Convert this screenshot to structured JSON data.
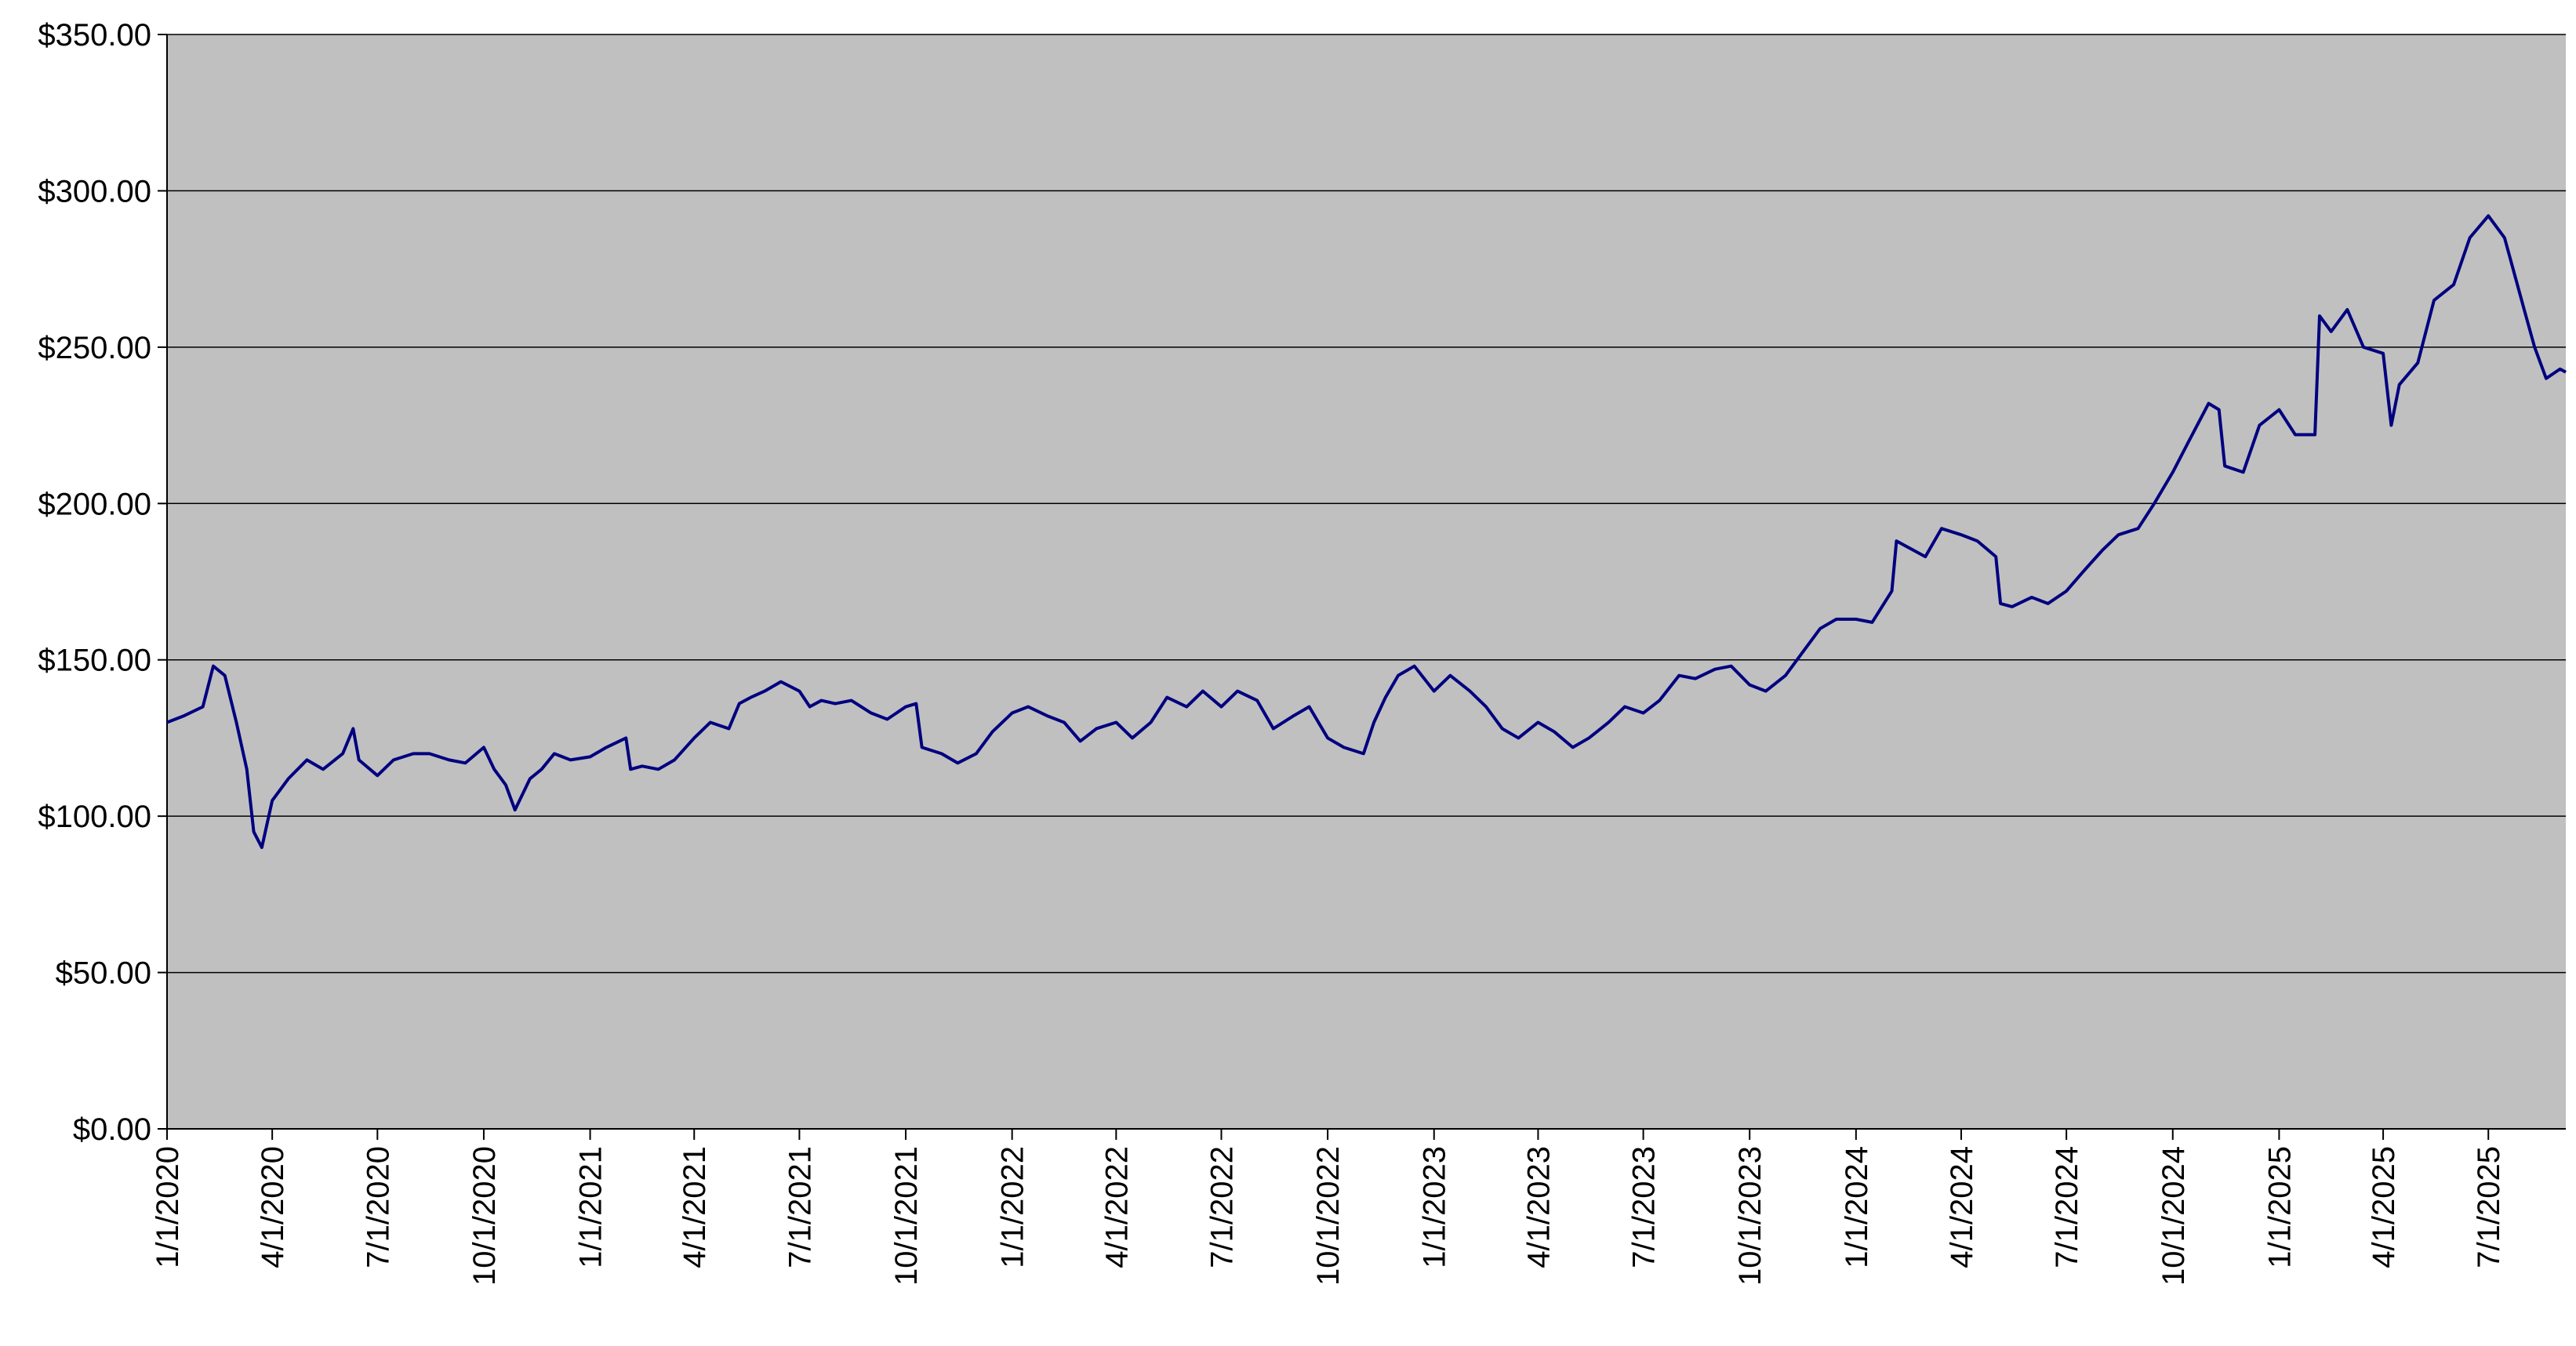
{
  "chart_data": {
    "type": "line",
    "x": [
      "1/1/2020",
      "1/15/2020",
      "2/1/2020",
      "2/10/2020",
      "2/20/2020",
      "3/1/2020",
      "3/10/2020",
      "3/16/2020",
      "3/23/2020",
      "4/1/2020",
      "4/15/2020",
      "5/1/2020",
      "5/15/2020",
      "6/1/2020",
      "6/10/2020",
      "6/15/2020",
      "7/1/2020",
      "7/15/2020",
      "8/1/2020",
      "8/15/2020",
      "9/1/2020",
      "9/15/2020",
      "10/1/2020",
      "10/10/2020",
      "10/20/2020",
      "10/28/2020",
      "11/10/2020",
      "11/20/2020",
      "12/1/2020",
      "12/15/2020",
      "1/1/2021",
      "1/15/2021",
      "2/1/2021",
      "2/5/2021",
      "2/15/2021",
      "3/1/2021",
      "3/15/2021",
      "4/1/2021",
      "4/15/2021",
      "5/1/2021",
      "5/10/2021",
      "5/20/2021",
      "6/1/2021",
      "6/15/2021",
      "7/1/2021",
      "7/10/2021",
      "7/20/2021",
      "8/1/2021",
      "8/15/2021",
      "9/1/2021",
      "9/15/2021",
      "10/1/2021",
      "10/10/2021",
      "10/15/2021",
      "11/1/2021",
      "11/15/2021",
      "12/1/2021",
      "12/15/2021",
      "1/1/2022",
      "1/15/2022",
      "2/1/2022",
      "2/15/2022",
      "3/1/2022",
      "3/15/2022",
      "4/1/2022",
      "4/15/2022",
      "5/1/2022",
      "5/15/2022",
      "6/1/2022",
      "6/15/2022",
      "7/1/2022",
      "7/15/2022",
      "8/1/2022",
      "8/15/2022",
      "9/1/2022",
      "9/15/2022",
      "10/1/2022",
      "10/15/2022",
      "11/1/2022",
      "11/10/2022",
      "11/20/2022",
      "12/1/2022",
      "12/15/2022",
      "1/1/2023",
      "1/15/2023",
      "2/1/2023",
      "2/15/2023",
      "3/1/2023",
      "3/15/2023",
      "4/1/2023",
      "4/15/2023",
      "5/1/2023",
      "5/15/2023",
      "6/1/2023",
      "6/15/2023",
      "7/1/2023",
      "7/15/2023",
      "8/1/2023",
      "8/15/2023",
      "9/1/2023",
      "9/15/2023",
      "10/1/2023",
      "10/15/2023",
      "11/1/2023",
      "11/15/2023",
      "12/1/2023",
      "12/15/2023",
      "1/1/2024",
      "1/15/2024",
      "2/1/2024",
      "2/5/2024",
      "2/15/2024",
      "3/1/2024",
      "3/15/2024",
      "4/1/2024",
      "4/15/2024",
      "5/1/2024",
      "5/5/2024",
      "5/15/2024",
      "6/1/2024",
      "6/15/2024",
      "7/1/2024",
      "7/15/2024",
      "8/1/2024",
      "8/15/2024",
      "9/1/2024",
      "9/15/2024",
      "10/1/2024",
      "10/15/2024",
      "11/1/2024",
      "11/10/2024",
      "11/15/2024",
      "12/1/2024",
      "12/15/2024",
      "1/1/2025",
      "1/15/2025",
      "2/1/2025",
      "2/5/2025",
      "2/15/2025",
      "3/1/2025",
      "3/15/2025",
      "4/1/2025",
      "4/8/2025",
      "4/15/2025",
      "5/1/2025",
      "5/15/2025",
      "6/1/2025",
      "6/15/2025",
      "7/1/2025",
      "7/15/2025",
      "8/1/2025",
      "8/10/2025",
      "8/20/2025",
      "9/1/2025",
      "9/6/2025"
    ],
    "series": [
      {
        "color": "#000080",
        "values": [
          130,
          132,
          135,
          148,
          145,
          130,
          115,
          95,
          90,
          105,
          112,
          118,
          115,
          120,
          128,
          118,
          113,
          118,
          120,
          120,
          118,
          117,
          122,
          115,
          110,
          102,
          112,
          115,
          120,
          118,
          119,
          122,
          125,
          115,
          116,
          115,
          118,
          125,
          130,
          128,
          136,
          138,
          140,
          143,
          140,
          135,
          137,
          136,
          137,
          133,
          131,
          135,
          136,
          122,
          120,
          117,
          120,
          127,
          133,
          135,
          132,
          130,
          124,
          128,
          130,
          125,
          130,
          138,
          135,
          140,
          135,
          140,
          137,
          128,
          132,
          135,
          125,
          122,
          120,
          130,
          138,
          145,
          148,
          140,
          145,
          140,
          135,
          128,
          125,
          130,
          127,
          122,
          125,
          130,
          135,
          133,
          137,
          145,
          144,
          147,
          148,
          142,
          140,
          145,
          152,
          160,
          163,
          163,
          162,
          172,
          188,
          186,
          183,
          192,
          190,
          188,
          183,
          168,
          167,
          170,
          168,
          172,
          178,
          185,
          190,
          192,
          200,
          210,
          220,
          232,
          230,
          212,
          210,
          225,
          230,
          222,
          222,
          260,
          255,
          262,
          250,
          248,
          225,
          238,
          245,
          265,
          270,
          285,
          292,
          285,
          262,
          250,
          240,
          243,
          242
        ]
      }
    ],
    "xlim": [
      "1/1/2020",
      "9/6/2025"
    ],
    "xticks": [
      "1/1/2020",
      "4/1/2020",
      "7/1/2020",
      "10/1/2020",
      "1/1/2021",
      "4/1/2021",
      "7/1/2021",
      "10/1/2021",
      "1/1/2022",
      "4/1/2022",
      "7/1/2022",
      "10/1/2022",
      "1/1/2023",
      "4/1/2023",
      "7/1/2023",
      "10/1/2023",
      "1/1/2024",
      "4/1/2024",
      "7/1/2024",
      "10/1/2024",
      "1/1/2025",
      "4/1/2025",
      "7/1/2025"
    ],
    "ylim": [
      0,
      350
    ],
    "yticks": [
      {
        "value": 0,
        "label": "$0.00"
      },
      {
        "value": 50,
        "label": "$50.00"
      },
      {
        "value": 100,
        "label": "$100.00"
      },
      {
        "value": 150,
        "label": "$150.00"
      },
      {
        "value": 200,
        "label": "$200.00"
      },
      {
        "value": 250,
        "label": "$250.00"
      },
      {
        "value": 300,
        "label": "$300.00"
      },
      {
        "value": 350,
        "label": "$350.00"
      }
    ],
    "grid": true,
    "background": "#c0c0c0"
  }
}
